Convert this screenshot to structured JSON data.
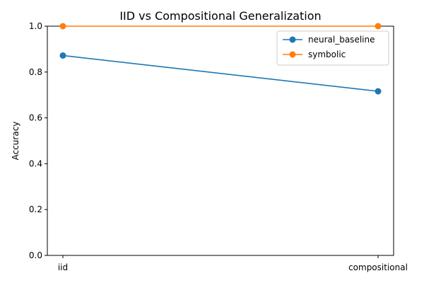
{
  "chart_data": {
    "type": "line",
    "title": "IID vs Compositional Generalization",
    "xlabel": "",
    "ylabel": "Accuracy",
    "categories": [
      "iid",
      "compositional"
    ],
    "ylim": [
      0.0,
      1.0
    ],
    "yticks": [
      "0.0",
      "0.2",
      "0.4",
      "0.6",
      "0.8",
      "1.0"
    ],
    "grid": false,
    "legend_position": "top-right",
    "series": [
      {
        "name": "neural_baseline",
        "values": [
          0.872,
          0.716
        ],
        "color": "#1f77b4"
      },
      {
        "name": "symbolic",
        "values": [
          1.0,
          1.0
        ],
        "color": "#ff7f0e"
      }
    ]
  }
}
